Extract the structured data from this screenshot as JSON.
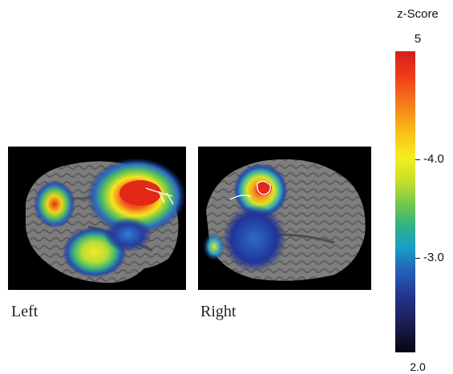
{
  "colorbar": {
    "title": "z-Score",
    "max_label": "5",
    "min_label": "2.0",
    "tick_labels": [
      "-4.0",
      "-3.0"
    ],
    "colors": [
      "#d41f1c",
      "#f57f1b",
      "#f5ee1e",
      "#72c64d",
      "#1a9fc6",
      "#24328a",
      "#06060f"
    ]
  },
  "panels": {
    "left": {
      "caption": "Left"
    },
    "right": {
      "caption": "Right"
    }
  }
}
